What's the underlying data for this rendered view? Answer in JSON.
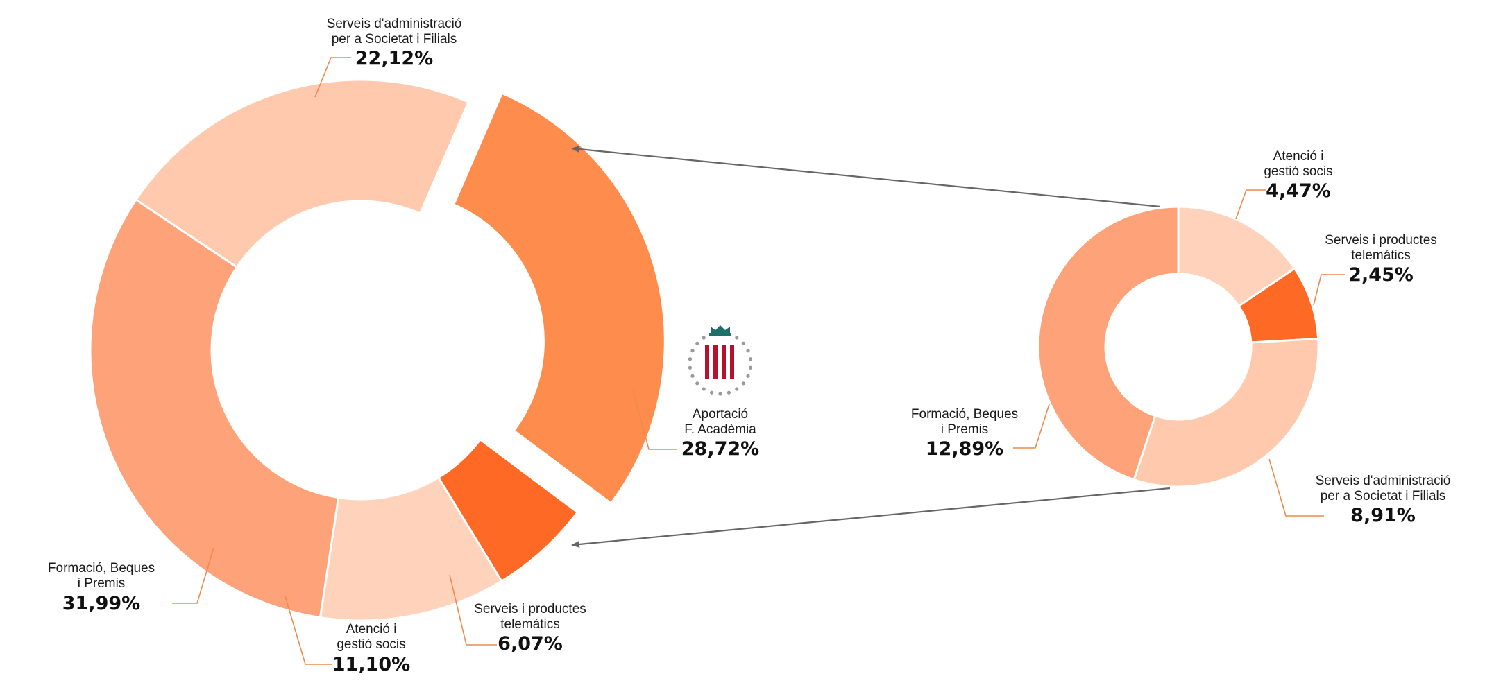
{
  "chart_data": [
    {
      "type": "pie",
      "slices": [
        {
          "label_lines": [
            "Serveis d'administració",
            "per a Societat i Filials"
          ],
          "value_label": "22,12%",
          "value": 22.12,
          "color": "#ffc9ad"
        },
        {
          "label_lines": [
            "Aportació",
            "F. Acadèmia"
          ],
          "value_label": "28,72%",
          "value": 28.72,
          "color": "#fe8c4c"
        },
        {
          "label_lines": [
            "Serveis i productes",
            "telemátics"
          ],
          "value_label": "6,07%",
          "value": 6.07,
          "color": "#fe6a25"
        },
        {
          "label_lines": [
            "Atenció i",
            "gestió socis"
          ],
          "value_label": "11,10%",
          "value": 11.1,
          "color": "#ffd2bb"
        },
        {
          "label_lines": [
            "Formació, Beques",
            "i Premis"
          ],
          "value_label": "31,99%",
          "value": 31.99,
          "color": "#fea27a"
        }
      ]
    },
    {
      "type": "pie",
      "slices": [
        {
          "label_lines": [
            "Atenció i",
            "gestió socis"
          ],
          "value_label": "4,47%",
          "value": 4.47,
          "color": "#ffd2bb"
        },
        {
          "label_lines": [
            "Serveis i productes",
            "telemátics"
          ],
          "value_label": "2,45%",
          "value": 2.45,
          "color": "#fe6a25"
        },
        {
          "label_lines": [
            "Serveis d'administració",
            "per a Societat i Filials"
          ],
          "value_label": "8,91%",
          "value": 8.91,
          "color": "#ffc9ad"
        },
        {
          "label_lines": [
            "Formació, Beques",
            "i Premis"
          ],
          "value_label": "12,89%",
          "value": 12.89,
          "color": "#fea27a"
        }
      ]
    }
  ],
  "colors": {
    "leader_line": "#f0894a",
    "arrow": "#666666",
    "logo_crown": "#1e6e6a",
    "logo_stripes": "#b5122d",
    "logo_dots": "#9a9a9a"
  },
  "logo": {
    "icon": "academy-emblem-icon"
  }
}
